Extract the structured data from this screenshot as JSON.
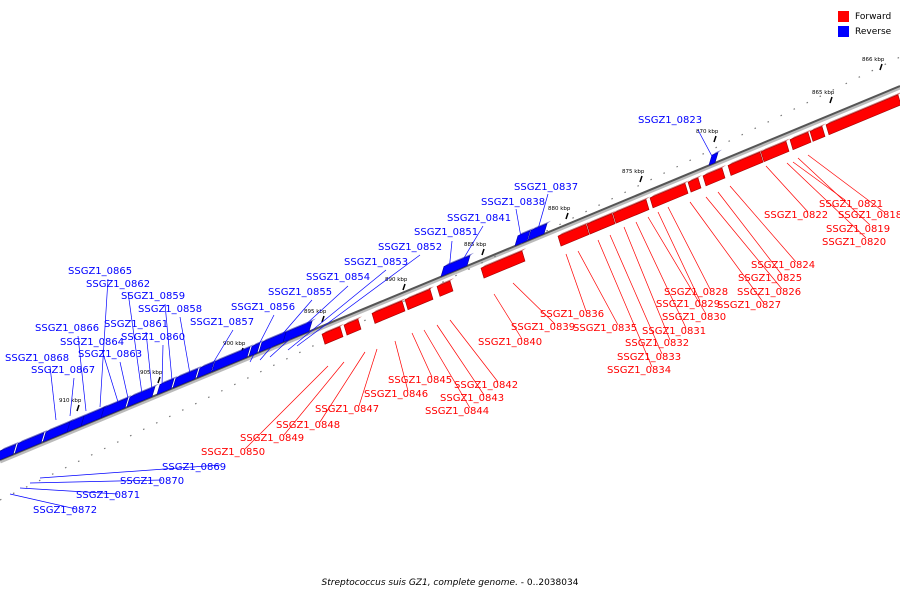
{
  "legend": {
    "forward_label": "Forward",
    "reverse_label": "Reverse",
    "forward_color": "#ff0000",
    "reverse_color": "#0000ff"
  },
  "caption": {
    "organism": "Streptococcus suis GZ1, complete genome.",
    "range": " - 0..2038034"
  },
  "ruler": [
    "866 kbp",
    "865 kbp",
    "870 kbp",
    "875 kbp",
    "880 kbp",
    "885 kbp",
    "890 kbp",
    "895 kbp",
    "900 kbp",
    "905 kbp",
    "910 kbp"
  ],
  "forward_genes": [
    "SSGZ1_0818",
    "SSGZ1_0819",
    "SSGZ1_0820",
    "SSGZ1_0821",
    "SSGZ1_0822",
    "SSGZ1_0824",
    "SSGZ1_0825",
    "SSGZ1_0826",
    "SSGZ1_0827",
    "SSGZ1_0828",
    "SSGZ1_0829",
    "SSGZ1_0830",
    "SSGZ1_0831",
    "SSGZ1_0832",
    "SSGZ1_0833",
    "SSGZ1_0834",
    "SSGZ1_0835",
    "SSGZ1_0836",
    "SSGZ1_0839",
    "SSGZ1_0840",
    "SSGZ1_0842",
    "SSGZ1_0843",
    "SSGZ1_0844",
    "SSGZ1_0845",
    "SSGZ1_0846",
    "SSGZ1_0847",
    "SSGZ1_0848",
    "SSGZ1_0849",
    "SSGZ1_0850"
  ],
  "reverse_genes": [
    "SSGZ1_0823",
    "SSGZ1_0837",
    "SSGZ1_0838",
    "SSGZ1_0841",
    "SSGZ1_0851",
    "SSGZ1_0852",
    "SSGZ1_0853",
    "SSGZ1_0854",
    "SSGZ1_0855",
    "SSGZ1_0856",
    "SSGZ1_0857",
    "SSGZ1_0858",
    "SSGZ1_0859",
    "SSGZ1_0860",
    "SSGZ1_0861",
    "SSGZ1_0862",
    "SSGZ1_0863",
    "SSGZ1_0864",
    "SSGZ1_0865",
    "SSGZ1_0866",
    "SSGZ1_0867",
    "SSGZ1_0868",
    "SSGZ1_0869",
    "SSGZ1_0870",
    "SSGZ1_0871",
    "SSGZ1_0872"
  ]
}
